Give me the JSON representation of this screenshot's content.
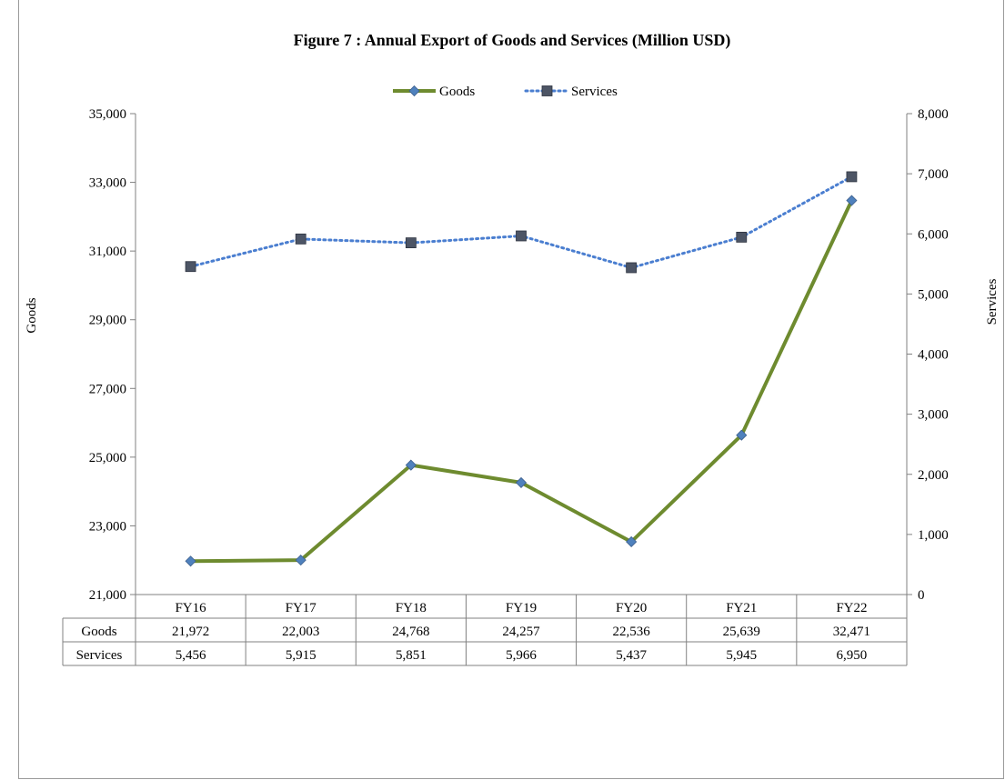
{
  "chart_data": {
    "type": "line",
    "title": "Figure  7 : Annual Export of Goods and Services (Million USD)",
    "categories": [
      "FY16",
      "FY17",
      "FY18",
      "FY19",
      "FY20",
      "FY21",
      "FY22"
    ],
    "series": [
      {
        "name": "Goods",
        "axis": "left",
        "color": "#6e8b2f",
        "marker_color": "#4f81bd",
        "marker": "diamond",
        "line_style": "solid",
        "values": [
          21972,
          22003,
          24768,
          24257,
          22536,
          25639,
          32471
        ],
        "labels": [
          "21,972",
          "22,003",
          "24,768",
          "24,257",
          "22,536",
          "25,639",
          "32,471"
        ]
      },
      {
        "name": "Services",
        "axis": "right",
        "color": "#4a7ed0",
        "marker_color": "#4d5565",
        "marker": "square",
        "line_style": "dotted",
        "values": [
          5456,
          5915,
          5851,
          5966,
          5437,
          5945,
          6950
        ],
        "labels": [
          "5,456",
          "5,915",
          "5,851",
          "5,966",
          "5,437",
          "5,945",
          "6,950"
        ]
      }
    ],
    "y_left": {
      "label": "Goods",
      "range": [
        21000,
        35000
      ],
      "ticks": [
        21000,
        23000,
        25000,
        27000,
        29000,
        31000,
        33000,
        35000
      ],
      "tick_labels": [
        "21,000",
        "23,000",
        "25,000",
        "27,000",
        "29,000",
        "31,000",
        "33,000",
        "35,000"
      ]
    },
    "y_right": {
      "label": "Services",
      "range": [
        0,
        8000
      ],
      "ticks": [
        0,
        1000,
        2000,
        3000,
        4000,
        5000,
        6000,
        7000,
        8000
      ],
      "tick_labels": [
        "0",
        "1,000",
        "2,000",
        "3,000",
        "4,000",
        "5,000",
        "6,000",
        "7,000",
        "8,000"
      ]
    },
    "legend_position": "top-center",
    "grid": false,
    "data_table": true
  }
}
